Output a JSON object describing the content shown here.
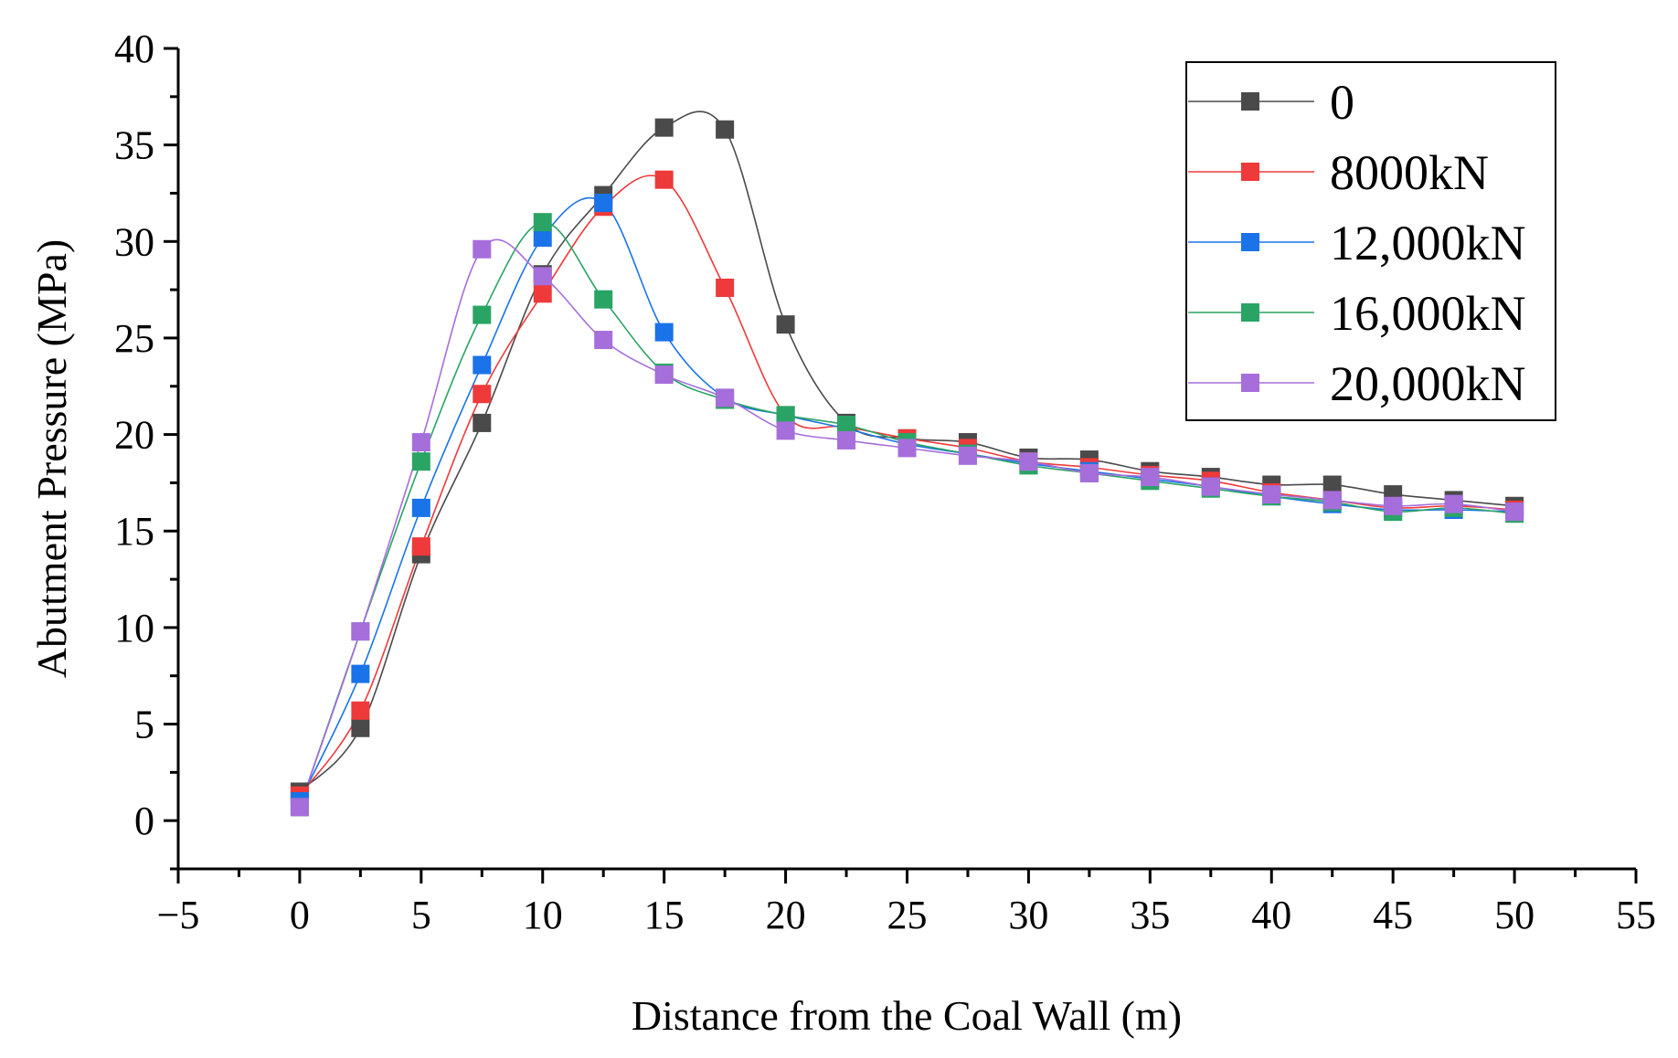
{
  "chart_data": {
    "type": "line",
    "title": "",
    "xlabel": "Distance from the Coal Wall (m)",
    "ylabel": "Abutment Pressure (MPa)",
    "xlim": [
      -5,
      55
    ],
    "ylim": [
      -2.5,
      40
    ],
    "xticks": [
      -5,
      0,
      5,
      10,
      15,
      20,
      25,
      30,
      35,
      40,
      45,
      50,
      55
    ],
    "xtick_labels": [
      "−5",
      "0",
      "5",
      "10",
      "15",
      "20",
      "25",
      "30",
      "35",
      "40",
      "45",
      "50",
      "55"
    ],
    "yticks": [
      0,
      5,
      10,
      15,
      20,
      25,
      30,
      35,
      40
    ],
    "ytick_labels": [
      "0",
      "5",
      "10",
      "15",
      "20",
      "25",
      "30",
      "35",
      "40"
    ],
    "legend_position": "top-right",
    "x": [
      0,
      2.5,
      5,
      7.5,
      10,
      12.5,
      15,
      17.5,
      20,
      22.5,
      25,
      27.5,
      30,
      32.5,
      35,
      37.5,
      40,
      42.5,
      45,
      47.5,
      50
    ],
    "series": [
      {
        "name": "0",
        "color": "#4a4a4a",
        "values": [
          1.5,
          4.8,
          13.8,
          20.6,
          28.3,
          32.4,
          35.9,
          35.8,
          25.7,
          20.6,
          19.8,
          19.6,
          18.8,
          18.7,
          18.1,
          17.8,
          17.4,
          17.4,
          16.9,
          16.6,
          16.3
        ]
      },
      {
        "name": "8000kN",
        "color": "#ee3a3a",
        "values": [
          1.3,
          5.7,
          14.2,
          22.1,
          27.3,
          31.8,
          33.2,
          27.6,
          21.0,
          20.4,
          19.8,
          19.3,
          18.6,
          18.3,
          17.9,
          17.6,
          17.0,
          16.6,
          16.2,
          16.3,
          16.1
        ]
      },
      {
        "name": "12,000kN",
        "color": "#1a73e8",
        "values": [
          1.0,
          7.6,
          16.2,
          23.6,
          30.2,
          32.0,
          25.3,
          21.9,
          21.0,
          20.3,
          19.5,
          19.0,
          18.5,
          18.1,
          17.7,
          17.3,
          16.8,
          16.4,
          16.1,
          16.1,
          16.0
        ]
      },
      {
        "name": "16,000kN",
        "color": "#2aa464",
        "values": [
          0.7,
          9.8,
          18.6,
          26.2,
          31.0,
          27.0,
          23.2,
          21.8,
          21.0,
          20.5,
          19.6,
          19.0,
          18.4,
          18.0,
          17.6,
          17.2,
          16.8,
          16.5,
          16.0,
          16.2,
          15.9
        ]
      },
      {
        "name": "20,000kN",
        "color": "#a66edb",
        "values": [
          0.7,
          9.8,
          19.6,
          29.6,
          28.2,
          24.9,
          23.1,
          21.9,
          20.2,
          19.7,
          19.3,
          18.9,
          18.6,
          18.0,
          17.8,
          17.3,
          16.9,
          16.6,
          16.3,
          16.4,
          16.0
        ]
      }
    ]
  }
}
